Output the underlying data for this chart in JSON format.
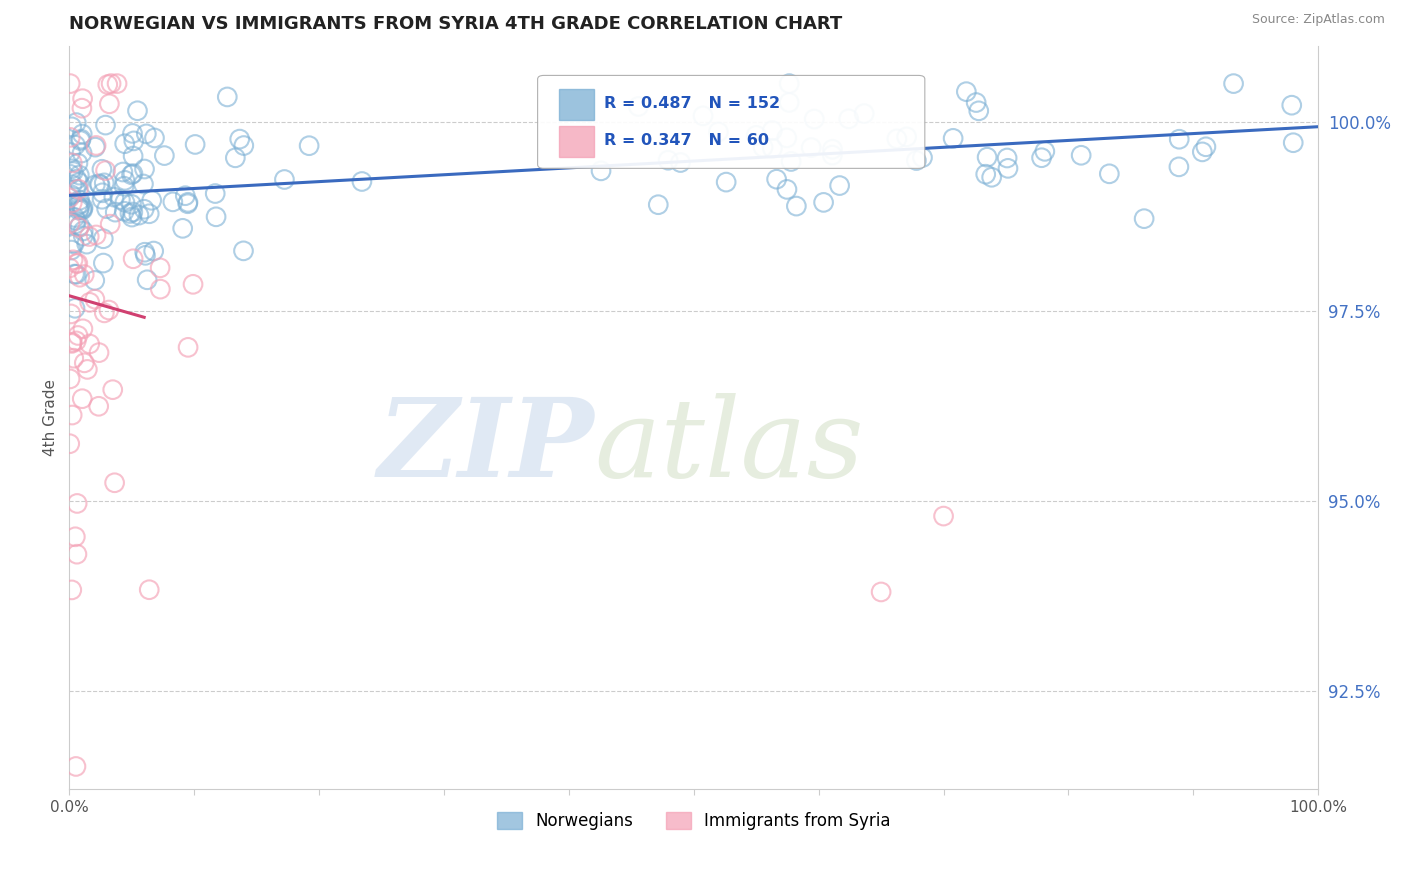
{
  "title": "NORWEGIAN VS IMMIGRANTS FROM SYRIA 4TH GRADE CORRELATION CHART",
  "source": "Source: ZipAtlas.com",
  "ylabel": "4th Grade",
  "xlim": [
    0,
    100
  ],
  "ylim": [
    91.2,
    101.0
  ],
  "yticks": [
    92.5,
    95.0,
    97.5,
    100.0
  ],
  "yticklabels": [
    "92.5%",
    "95.0%",
    "97.5%",
    "100.0%"
  ],
  "legend_norwegian": "Norwegians",
  "legend_syria": "Immigrants from Syria",
  "r_norwegian": 0.487,
  "n_norwegian": 152,
  "r_syria": 0.347,
  "n_syria": 60,
  "norwegian_color": "#7bafd4",
  "norway_line_color": "#3a6abf",
  "syria_color": "#f4a0b5",
  "syria_line_color": "#d04070",
  "norway_seed": 77,
  "syria_seed": 33
}
